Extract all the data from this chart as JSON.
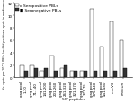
{
  "categories": [
    "gag pool\n1-70",
    "gag pool\n71-140",
    "gag pool\n141-200",
    "gag pool\n201-260",
    "gag pool\n261-320",
    "gag pool\n321-370",
    "gag pool\n371-75",
    "gag pool\n375-440",
    "gag pool\n441-480",
    "env-V3",
    "env-IDR"
  ],
  "seropositive": [
    2.0,
    2.0,
    1.0,
    3.5,
    1.5,
    1.0,
    1.0,
    11.0,
    5.0,
    9.0,
    6.0
  ],
  "seronegative": [
    1.0,
    1.5,
    1.5,
    1.0,
    2.0,
    1.0,
    1.0,
    1.0,
    1.0,
    1.0,
    1.5
  ],
  "seropositive_color": "#ffffff",
  "seronegative_color": "#333333",
  "seropositive_edge": "#000000",
  "seronegative_edge": "#000000",
  "ylabel": "No. spots per 10^6 PBLs (or fold positives, spots in medium control)",
  "xlabel": "SIV peptides",
  "ylim": [
    0,
    12
  ],
  "yticks": [
    0,
    2,
    4,
    6,
    8,
    10,
    12
  ],
  "legend_seropositive": "o Seropositive PBLs",
  "legend_seronegative": "■ Seronegative PBLs",
  "bar_width": 0.38,
  "tick_fontsize": 2.8,
  "legend_fontsize": 3.2,
  "axis_label_fontsize": 3.0,
  "ylabel_fontsize": 2.3
}
